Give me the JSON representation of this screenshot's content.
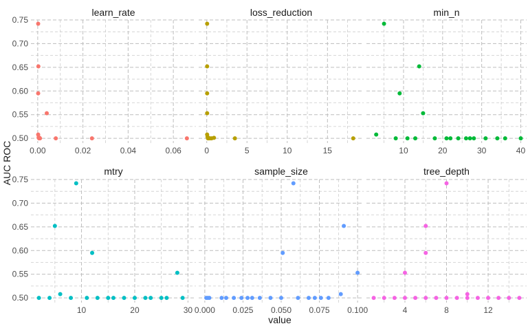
{
  "chart_data": {
    "type": "scatter",
    "xlabel": "value",
    "ylabel": "AUC ROC",
    "y_axis": {
      "range": [
        0.49,
        0.75
      ],
      "ticks": [
        0.5,
        0.55,
        0.6,
        0.65,
        0.7,
        0.75
      ],
      "tick_labels": [
        "0.50",
        "0.55",
        "0.60",
        "0.65",
        "0.70",
        "0.75"
      ]
    },
    "grid": "dashed",
    "legend": "none",
    "panels": [
      {
        "title": "learn_rate",
        "color": "#F8766D",
        "xlim": [
          -0.003,
          0.07
        ],
        "xticks": [
          0.0,
          0.02,
          0.04,
          0.06
        ],
        "xtick_labels": [
          "0.00",
          "0.02",
          "0.04",
          "0.06"
        ],
        "points": [
          [
            0.0002,
            0.742
          ],
          [
            0.0003,
            0.652
          ],
          [
            0.0002,
            0.595
          ],
          [
            0.004,
            0.553
          ],
          [
            0.0002,
            0.508
          ],
          [
            0.0004,
            0.502
          ],
          [
            0.0006,
            0.5
          ],
          [
            0.001,
            0.5
          ],
          [
            0.0008,
            0.501
          ],
          [
            0.008,
            0.5
          ],
          [
            0.024,
            0.5
          ],
          [
            0.066,
            0.5
          ]
        ]
      },
      {
        "title": "loss_reduction",
        "color": "#B79F00",
        "xlim": [
          -1.0,
          19.5
        ],
        "xticks": [
          0,
          5,
          10,
          15
        ],
        "xtick_labels": [
          "0",
          "5",
          "10",
          "15"
        ],
        "points": [
          [
            0.05,
            0.742
          ],
          [
            0.05,
            0.652
          ],
          [
            0.05,
            0.595
          ],
          [
            0.05,
            0.553
          ],
          [
            0.05,
            0.508
          ],
          [
            0.1,
            0.503
          ],
          [
            0.15,
            0.5
          ],
          [
            0.25,
            0.5
          ],
          [
            0.4,
            0.5
          ],
          [
            0.6,
            0.5
          ],
          [
            0.9,
            0.501
          ],
          [
            3.5,
            0.5
          ],
          [
            18.2,
            0.5
          ]
        ]
      },
      {
        "title": "min_n",
        "color": "#00BA38",
        "xlim": [
          0.5,
          41.5
        ],
        "xticks": [
          10,
          20,
          30,
          40
        ],
        "xtick_labels": [
          "10",
          "20",
          "30",
          "40"
        ],
        "points": [
          [
            5,
            0.742
          ],
          [
            14,
            0.652
          ],
          [
            9,
            0.595
          ],
          [
            15,
            0.553
          ],
          [
            3,
            0.508
          ],
          [
            8,
            0.5
          ],
          [
            11,
            0.5
          ],
          [
            13,
            0.5
          ],
          [
            18,
            0.5
          ],
          [
            21,
            0.5
          ],
          [
            22,
            0.5
          ],
          [
            24,
            0.5
          ],
          [
            26,
            0.5
          ],
          [
            27,
            0.5
          ],
          [
            28,
            0.5
          ],
          [
            31,
            0.5
          ],
          [
            34,
            0.5
          ],
          [
            36,
            0.5
          ],
          [
            40,
            0.5
          ]
        ]
      },
      {
        "title": "mtry",
        "color": "#00BFC4",
        "xlim": [
          0.5,
          31.5
        ],
        "xticks": [
          10,
          20,
          30
        ],
        "xtick_labels": [
          "10",
          "20",
          "30"
        ],
        "points": [
          [
            9,
            0.742
          ],
          [
            5,
            0.652
          ],
          [
            12,
            0.595
          ],
          [
            28,
            0.553
          ],
          [
            6,
            0.508
          ],
          [
            2,
            0.5
          ],
          [
            4,
            0.5
          ],
          [
            8,
            0.5
          ],
          [
            11,
            0.5
          ],
          [
            13,
            0.5
          ],
          [
            15,
            0.5
          ],
          [
            16,
            0.5
          ],
          [
            18,
            0.5
          ],
          [
            20,
            0.5
          ],
          [
            22,
            0.5
          ],
          [
            23,
            0.5
          ],
          [
            25,
            0.5
          ],
          [
            26,
            0.5
          ],
          [
            29,
            0.5
          ]
        ]
      },
      {
        "title": "sample_size",
        "color": "#619CFF",
        "xlim": [
          -0.004,
          0.104
        ],
        "xticks": [
          0.0,
          0.025,
          0.05,
          0.075,
          0.1
        ],
        "xtick_labels": [
          "0.000",
          "0.025",
          "0.050",
          "0.075",
          "0.100"
        ],
        "points": [
          [
            0.058,
            0.742
          ],
          [
            0.091,
            0.652
          ],
          [
            0.051,
            0.595
          ],
          [
            0.1,
            0.553
          ],
          [
            0.089,
            0.508
          ],
          [
            0.001,
            0.5
          ],
          [
            0.002,
            0.5
          ],
          [
            0.003,
            0.5
          ],
          [
            0.011,
            0.5
          ],
          [
            0.014,
            0.5
          ],
          [
            0.019,
            0.5
          ],
          [
            0.024,
            0.5
          ],
          [
            0.028,
            0.5
          ],
          [
            0.031,
            0.5
          ],
          [
            0.036,
            0.5
          ],
          [
            0.043,
            0.5
          ],
          [
            0.05,
            0.5
          ],
          [
            0.061,
            0.5
          ],
          [
            0.068,
            0.5
          ],
          [
            0.072,
            0.5
          ],
          [
            0.076,
            0.5
          ],
          [
            0.081,
            0.5
          ]
        ]
      },
      {
        "title": "tree_depth",
        "color": "#F564E3",
        "xlim": [
          0.3,
          15.7
        ],
        "xticks": [
          4,
          8,
          12
        ],
        "xtick_labels": [
          "4",
          "8",
          "12"
        ],
        "points": [
          [
            8,
            0.742
          ],
          [
            6,
            0.652
          ],
          [
            6,
            0.595
          ],
          [
            4,
            0.553
          ],
          [
            10,
            0.508
          ],
          [
            10,
            0.5
          ],
          [
            1,
            0.5
          ],
          [
            2,
            0.5
          ],
          [
            3,
            0.5
          ],
          [
            4,
            0.5
          ],
          [
            5,
            0.5
          ],
          [
            6,
            0.5
          ],
          [
            7,
            0.5
          ],
          [
            8,
            0.5
          ],
          [
            9,
            0.5
          ],
          [
            11,
            0.5
          ],
          [
            12,
            0.5
          ],
          [
            13,
            0.5
          ],
          [
            14,
            0.5
          ],
          [
            15,
            0.5
          ]
        ]
      }
    ]
  }
}
